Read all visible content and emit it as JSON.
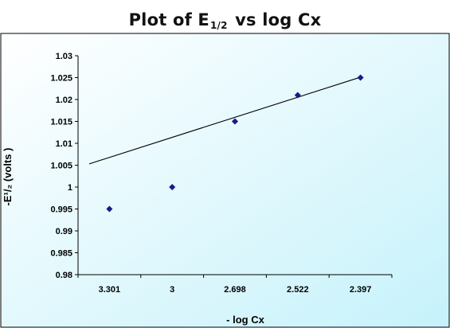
{
  "chart_data": {
    "type": "scatter",
    "title": {
      "prefix": "Plot of E",
      "subscript": "1/2",
      "suffix": "vs log Cx"
    },
    "xlabel": "- log  Cx",
    "ylabel": "-E¹/₂ (volts )",
    "categories": [
      "3.301",
      "3",
      "2.698",
      "2.522",
      "2.397"
    ],
    "points": [
      {
        "x": "3.301",
        "y": 0.995
      },
      {
        "x": "3",
        "y": 1.0
      },
      {
        "x": "2.698",
        "y": 1.015
      },
      {
        "x": "2.522",
        "y": 1.021
      },
      {
        "x": "2.397",
        "y": 1.025
      }
    ],
    "trendline": {
      "y_start": 1.0053,
      "y_end": 1.0251
    },
    "ylim": [
      0.98,
      1.03
    ],
    "yticks": [
      "0.98",
      "0.985",
      "0.99",
      "0.995",
      "1",
      "1.005",
      "1.01",
      "1.015",
      "1.02",
      "1.025",
      "1.03"
    ],
    "grid": false,
    "legend": false,
    "colors": {
      "marker": "#1a1a8c",
      "trendline": "#000000",
      "background_start": "#ffffff",
      "background_end": "#c6f2fb",
      "frame": "#000000"
    }
  }
}
